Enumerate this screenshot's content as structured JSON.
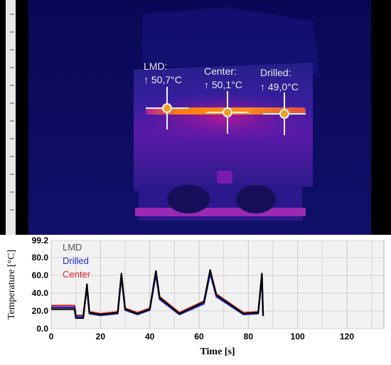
{
  "thermal_view": {
    "markers": [
      {
        "id": "lmd",
        "label": "LMD:",
        "reading": "↑ 50,7°C"
      },
      {
        "id": "center",
        "label": "Center:",
        "reading": "↑ 50,1°C"
      },
      {
        "id": "drilled",
        "label": "Drilled:",
        "reading": "↑ 49,0°C"
      }
    ]
  },
  "chart_data": {
    "type": "line",
    "xlabel": "Time [s]",
    "ylabel": "Temperature [°C]",
    "xlim": [
      0,
      135
    ],
    "ylim": [
      0,
      99.2
    ],
    "x_ticks": [
      "0",
      "20",
      "40",
      "60",
      "80",
      "100",
      "120"
    ],
    "y_ticks": [
      "0.0",
      "20.0",
      "40.0",
      "60.0",
      "80.0",
      "99.2"
    ],
    "grid": true,
    "legend_placement": "top-left",
    "series": [
      {
        "name": "LMD",
        "color": "#000000",
        "x": [
          0,
          9.5,
          10,
          13,
          14.5,
          15.5,
          20,
          27,
          28.5,
          30,
          35,
          40,
          42.5,
          44,
          52,
          62,
          64.5,
          67,
          78,
          84,
          85.5,
          86
        ],
        "y": [
          22,
          22,
          12,
          12,
          50,
          18,
          16,
          18,
          62,
          22,
          17,
          22,
          65,
          35,
          17,
          30,
          66,
          38,
          17,
          18,
          62,
          15
        ]
      },
      {
        "name": "Drilled",
        "color": "#1f2ccc",
        "x": [
          0,
          9.5,
          10,
          13,
          14.5,
          15.5,
          20,
          27,
          28.5,
          30,
          35,
          40,
          42.5,
          44,
          52,
          62,
          64.5,
          67,
          78,
          84,
          85.5,
          86
        ],
        "y": [
          24,
          24,
          14,
          14,
          46,
          17,
          15,
          17,
          58,
          21,
          16,
          21,
          61,
          33,
          16,
          28,
          62,
          36,
          16,
          17,
          58,
          14
        ]
      },
      {
        "name": "Center",
        "color": "#e02020",
        "x": [
          0,
          9.5,
          10,
          13,
          14.5,
          15.5,
          20,
          27,
          28.5,
          30,
          35,
          40,
          42.5,
          44,
          52,
          62,
          64.5,
          67,
          78,
          84,
          85.5,
          86
        ],
        "y": [
          26,
          26,
          15,
          15,
          48,
          19,
          17,
          19,
          60,
          23,
          18,
          23,
          63,
          36,
          18,
          31,
          64,
          39,
          18,
          19,
          60,
          16
        ]
      }
    ]
  }
}
